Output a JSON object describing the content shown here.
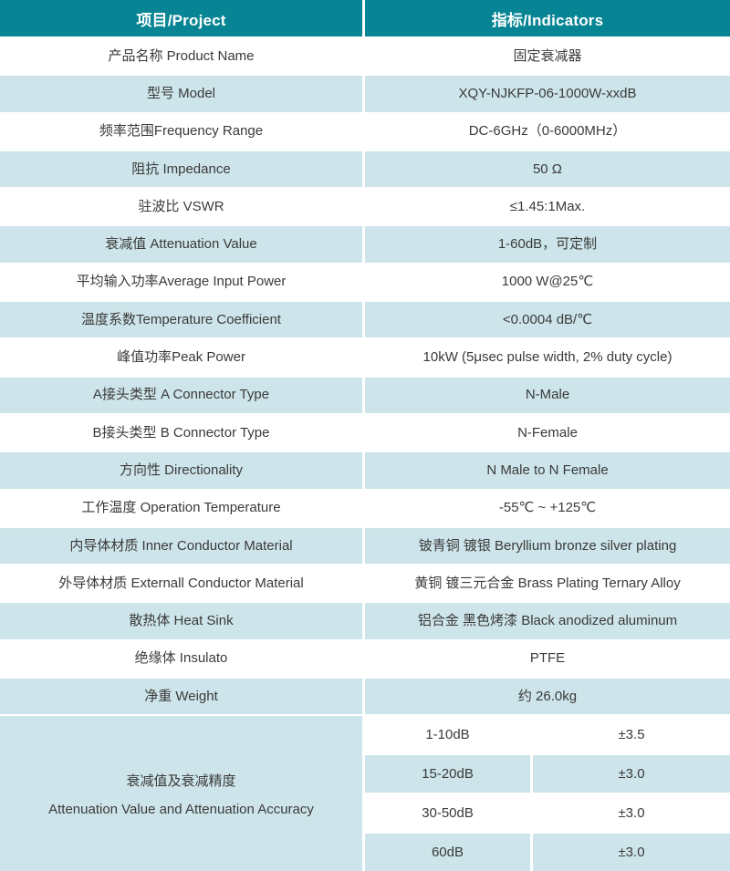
{
  "table": {
    "header": {
      "project": "项目/Project",
      "indicators": "指标/Indicators"
    },
    "rows": [
      {
        "label": "产品名称 Product Name",
        "value": "固定衰减器"
      },
      {
        "label": "型号 Model",
        "value": "XQY-NJKFP-06-1000W-xxdB"
      },
      {
        "label": "频率范围Frequency Range",
        "value": "DC-6GHz（0-6000MHz）"
      },
      {
        "label": "阻抗 Impedance",
        "value": "50 Ω"
      },
      {
        "label": "驻波比 VSWR",
        "value": "≤1.45:1Max."
      },
      {
        "label": "衰减值 Attenuation Value",
        "value": "1-60dB，可定制"
      },
      {
        "label": "平均输入功率Average Input Power",
        "value": "1000 W@25℃"
      },
      {
        "label": "温度系数Temperature Coefficient",
        "value": "<0.0004 dB/℃"
      },
      {
        "label": "峰值功率Peak Power",
        "value": "10kW (5μsec pulse width, 2% duty cycle)"
      },
      {
        "label": "A接头类型 A Connector Type",
        "value": "N-Male"
      },
      {
        "label": "B接头类型 B Connector Type",
        "value": "N-Female"
      },
      {
        "label": "方向性 Directionality",
        "value": "N Male to N Female"
      },
      {
        "label": "工作温度 Operation Temperature",
        "value": "-55℃ ~ +125℃"
      },
      {
        "label": "内导体材质 Inner Conductor Material",
        "value": "铍青铜 镀银 Beryllium bronze silver plating"
      },
      {
        "label": "外导体材质 Externall Conductor Material",
        "value": "黄铜 镀三元合金 Brass Plating Ternary Alloy"
      },
      {
        "label": "散热体 Heat Sink",
        "value": "铝合金 黑色烤漆 Black anodized aluminum"
      },
      {
        "label": "绝缘体 Insulato",
        "value": "PTFE"
      },
      {
        "label": "净重 Weight",
        "value": "约 26.0kg"
      }
    ],
    "accuracy": {
      "label_cn": "衰减值及衰减精度",
      "label_en": "Attenuation Value and Attenuation Accuracy",
      "entries": [
        {
          "range": "1-10dB",
          "tolerance": "±3.5"
        },
        {
          "range": "15-20dB",
          "tolerance": "±3.0"
        },
        {
          "range": "30-50dB",
          "tolerance": "±3.0"
        },
        {
          "range": "60dB",
          "tolerance": "±3.0"
        }
      ]
    },
    "colors": {
      "header_bg": "#088594",
      "alt_row_bg": "#cde5ea",
      "text": "#3a3a3a",
      "header_text": "#ffffff"
    }
  }
}
